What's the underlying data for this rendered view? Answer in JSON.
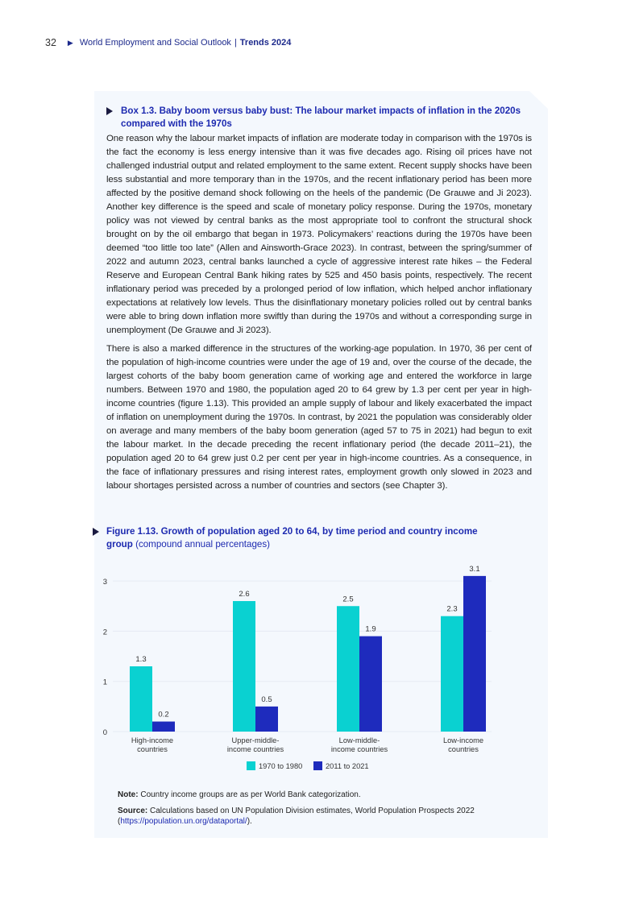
{
  "header": {
    "page_number": "32",
    "publication": "World Employment and Social Outlook",
    "separator": "|",
    "edition": "Trends 2024"
  },
  "box": {
    "title": "Box 1.3.  Baby boom versus baby bust: The labour market impacts of inflation in the 2020s compared with the 1970s",
    "paragraphs": [
      "One reason why the labour market impacts of inflation are moderate today in comparison with the 1970s is the fact the economy is less energy intensive than it was five decades ago. Rising oil prices have not challenged industrial output and related employment to the same extent. Recent supply shocks have been less substantial and more temporary than in the 1970s, and the recent inflationary period has been more affected by the positive demand shock following on the heels of the pandemic (De Grauwe and Ji 2023). Another key difference is the speed and scale of monetary policy response. During the 1970s, monetary policy was not viewed by central banks as the most appropriate tool to confront the structural shock brought on by the oil embargo that began in 1973. Policymakers’ reactions during the 1970s have been deemed “too little too late” (Allen and Ainsworth-Grace 2023). In contrast, between the spring/summer of 2022 and autumn 2023, central banks launched a cycle of aggressive interest rate hikes – the Federal Reserve and European Central Bank hiking rates by 525 and 450 basis points, respectively. The recent inflationary period was preceded by a prolonged period of low inflation, which helped anchor inflationary expectations at relatively low levels. Thus the disinflationary monetary policies rolled out by central banks were able to bring down inflation more swiftly than during the 1970s and without a corresponding surge in unemployment (De Grauwe and Ji 2023).",
      "There is also a marked difference in the structures of the working-age population. In 1970, 36 per cent of the population of high-income countries were under the age of 19 and, over the course of the decade, the largest cohorts of the baby boom generation came of working age and entered the workforce in large numbers. Between 1970 and 1980, the population aged 20 to 64 grew by 1.3 per cent per year in high-income countries (figure 1.13). This provided an ample supply of labour and likely exacerbated the impact of inflation on unemployment during the 1970s. In contrast, by 2021 the population was considerably older on average and many members of the baby boom generation (aged 57 to 75 in 2021) had begun to exit the labour market. In the decade preceding the recent inflationary period (the decade 2011–21), the population aged 20 to 64 grew just 0.2 per cent per year in high-income countries. As a consequence, in the face of inflationary pressures and rising interest rates, employment growth only slowed in 2023 and labour shortages persisted across a number of countries and sectors (see Chapter 3)."
    ]
  },
  "figure": {
    "title": "Figure 1.13.  Growth of population aged 20 to 64, by time period and country income group",
    "unit": "(compound annual percentages)"
  },
  "chart_data": {
    "type": "bar",
    "categories": [
      "High-income countries",
      "Upper-middle-income countries",
      "Low-middle-income countries",
      "Low-income countries"
    ],
    "category_lines": [
      [
        "High-income",
        "countries"
      ],
      [
        "Upper-middle-",
        "income countries"
      ],
      [
        "Low-middle-",
        "income countries"
      ],
      [
        "Low-income",
        "countries"
      ]
    ],
    "series": [
      {
        "name": "1970 to 1980",
        "values": [
          1.3,
          2.6,
          2.5,
          2.3
        ],
        "color": "#0ad1d1"
      },
      {
        "name": "2011 to 2021",
        "values": [
          0.2,
          0.5,
          1.9,
          3.1
        ],
        "color": "#1e2bbd"
      }
    ],
    "yticks": [
      "0",
      "1",
      "2",
      "3"
    ],
    "ylim": [
      0,
      3.3
    ],
    "grid": true,
    "legend": "bottom"
  },
  "note": {
    "note_label": "Note:",
    "note_text": " Country income groups are as per World Bank categorization.",
    "source_label": "Source:",
    "source_text": " Calculations based on UN Population Division estimates, World Population Prospects 2022 (",
    "source_link": "https://population.un.org/dataportal/",
    "source_end": ")."
  }
}
